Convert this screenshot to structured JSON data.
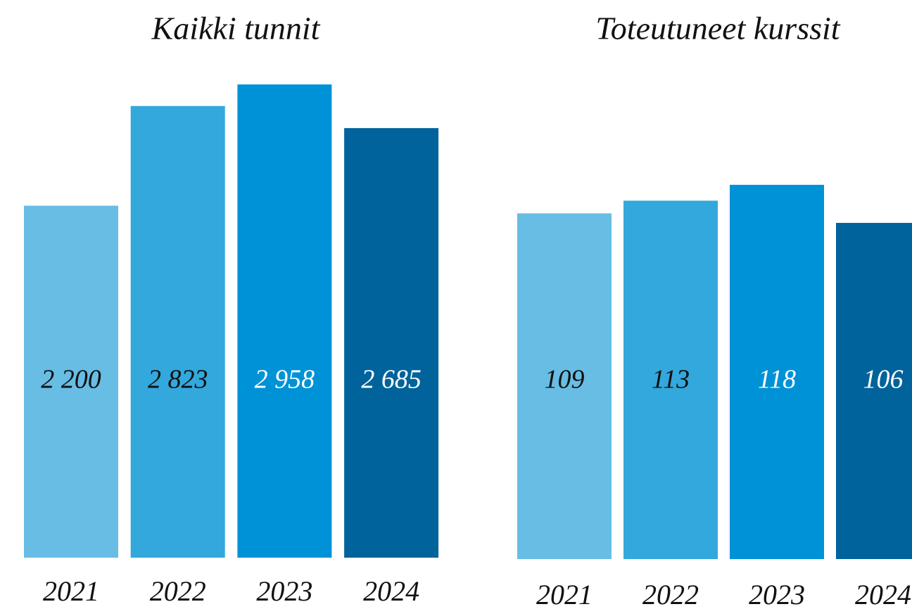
{
  "chart_data": [
    {
      "type": "bar",
      "title": "Kaikki tunnit",
      "categories": [
        "2021",
        "2022",
        "2023",
        "2024"
      ],
      "values": [
        2200,
        2823,
        2958,
        2685
      ],
      "value_labels": [
        "2 200",
        "2 823",
        "2 958",
        "2 685"
      ],
      "colors": [
        "#67bde3",
        "#33a8dc",
        "#0092d6",
        "#01639b"
      ]
    },
    {
      "type": "bar",
      "title": "Toteutuneet kurssit",
      "categories": [
        "2021",
        "2022",
        "2023",
        "2024"
      ],
      "values": [
        109,
        113,
        118,
        106
      ],
      "colors": [
        "#67bde3",
        "#33a8dc",
        "#0092d6",
        "#01639b"
      ]
    }
  ]
}
